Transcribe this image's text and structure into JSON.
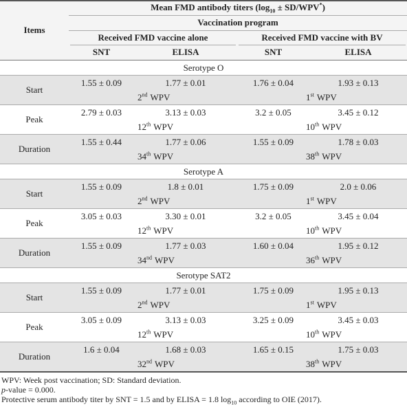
{
  "header": {
    "title": {
      "before": "Mean FMD antibody titers (log",
      "sub": "10",
      "after": " ± SD/WPV",
      "sup": "*",
      "end": ")"
    },
    "items": "Items",
    "program": "Vaccination program",
    "groups": [
      "Received FMD vaccine alone",
      "Received FMD vaccine with BV"
    ],
    "tests": [
      "SNT",
      "ELISA",
      "SNT",
      "ELISA"
    ]
  },
  "sections": [
    {
      "serotype": "Serotype O",
      "rows": [
        {
          "label": "Start",
          "values": [
            "1.55 ± 0.09",
            "1.77 ± 0.01",
            "1.76 ± 0.04",
            "1.93 ± 0.13"
          ],
          "notes": [
            {
              "number": "2",
              "suffix": "nd",
              "unit": "WPV"
            },
            {
              "number": "1",
              "suffix": "st",
              "unit": "WPV"
            }
          ]
        },
        {
          "label": "Peak",
          "values": [
            "2.79 ± 0.03",
            "3.13 ± 0.03",
            "3.2 ± 0.05",
            "3.45 ± 0.12"
          ],
          "notes": [
            {
              "number": "12",
              "suffix": "th",
              "unit": "WPV"
            },
            {
              "number": "10",
              "suffix": "th",
              "unit": "WPV"
            }
          ]
        },
        {
          "label": "Duration",
          "values": [
            "1.55 ± 0.44",
            "1.77 ± 0.06",
            "1.55 ± 0.09",
            "1.78 ± 0.03"
          ],
          "notes": [
            {
              "number": "34",
              "suffix": "th",
              "unit": "WPV"
            },
            {
              "number": "38",
              "suffix": "th",
              "unit": "WPV"
            }
          ]
        }
      ]
    },
    {
      "serotype": "Serotype A",
      "rows": [
        {
          "label": "Start",
          "values": [
            "1.55 ± 0.09",
            "1.8 ± 0.01",
            "1.75 ± 0.09",
            "2.0 ± 0.06"
          ],
          "notes": [
            {
              "number": "2",
              "suffix": "nd",
              "unit": "WPV"
            },
            {
              "number": "1",
              "suffix": "st",
              "unit": "WPV"
            }
          ]
        },
        {
          "label": "Peak",
          "values": [
            "3.05 ± 0.03",
            "3.30 ± 0.01",
            "3.2 ± 0.05",
            "3.45 ± 0.04"
          ],
          "notes": [
            {
              "number": "12",
              "suffix": "th",
              "unit": "WPV"
            },
            {
              "number": "10",
              "suffix": "th",
              "unit": "WPV"
            }
          ]
        },
        {
          "label": "Duration",
          "values": [
            "1.55 ± 0.09",
            "1.77 ± 0.03",
            "1.60 ± 0.04",
            "1.95 ± 0.12"
          ],
          "notes": [
            {
              "number": "34",
              "suffix": "nd",
              "unit": "WPV"
            },
            {
              "number": "36",
              "suffix": "th",
              "unit": "WPV"
            }
          ]
        }
      ]
    },
    {
      "serotype": "Serotype SAT2",
      "rows": [
        {
          "label": "Start",
          "values": [
            "1.55 ± 0.09",
            "1.77 ± 0.01",
            "1.75 ± 0.09",
            "1.95 ± 0.13"
          ],
          "notes": [
            {
              "number": "2",
              "suffix": "nd",
              "unit": "WPV"
            },
            {
              "number": "1",
              "suffix": "st",
              "unit": "WPV"
            }
          ]
        },
        {
          "label": "Peak",
          "values": [
            "3.05 ± 0.09",
            "3.13 ± 0.03",
            "3.25 ± 0.09",
            "3.45 ± 0.03"
          ],
          "notes": [
            {
              "number": "12",
              "suffix": "th",
              "unit": "WPV"
            },
            {
              "number": "10",
              "suffix": "th",
              "unit": "WPV"
            }
          ]
        },
        {
          "label": "Duration",
          "values": [
            "1.6 ± 0.04",
            "1.68 ± 0.03",
            "1.65 ± 0.15",
            "1.75 ± 0.03"
          ],
          "notes": [
            {
              "number": "32",
              "suffix": "nd",
              "unit": "WPV"
            },
            {
              "number": "38",
              "suffix": "th",
              "unit": "WPV"
            }
          ]
        }
      ]
    }
  ],
  "footnotes": {
    "abbreviations": "WPV: Week post vaccination; SD: Standard deviation.",
    "pvalue": {
      "italic": "p",
      "rest": "-value = 0.000."
    },
    "protective": {
      "before": "Protective serum antibody titer by SNT = 1.5 and by ELISA = 1.8 log",
      "sub": "10",
      "after": " according to OIE (2017)."
    }
  }
}
